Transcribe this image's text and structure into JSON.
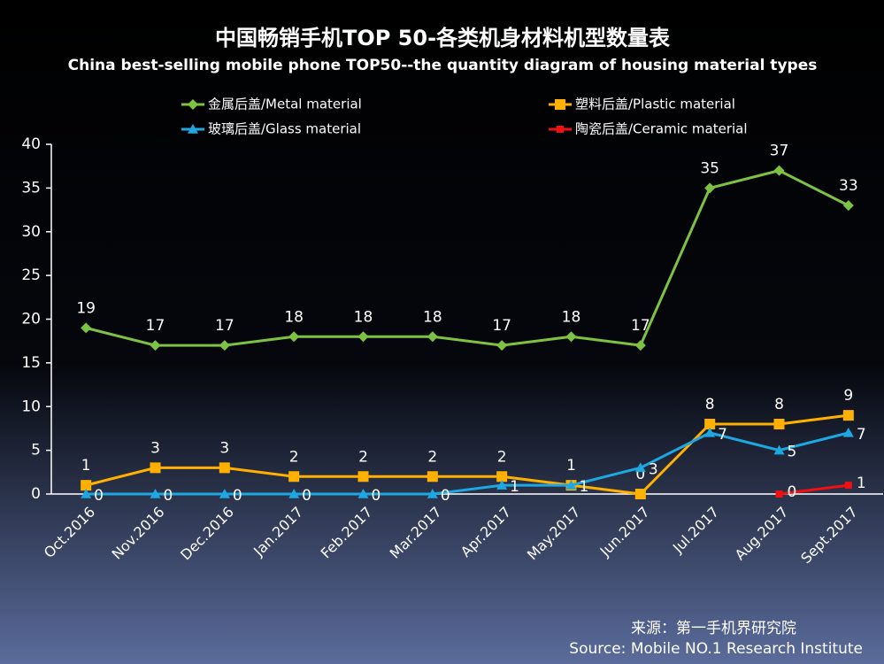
{
  "chart_data": {
    "type": "line",
    "title": "中国畅销手机TOP 50-各类机身材料机型数量表",
    "subtitle": "China best-selling mobile phone TOP50--the quantity diagram of housing material types",
    "categories": [
      "Oct.2016",
      "Nov.2016",
      "Dec.2016",
      "Jan.2017",
      "Feb.2017",
      "Mar.2017",
      "Apr.2017",
      "May.2017",
      "Jun.2017",
      "Jul.2017",
      "Aug.2017",
      "Sept.2017"
    ],
    "series": [
      {
        "name": "金属后盖/Metal material",
        "color": "#7dc242",
        "marker": "diamond",
        "values": [
          19,
          17,
          17,
          18,
          18,
          18,
          17,
          18,
          17,
          35,
          37,
          33
        ]
      },
      {
        "name": "塑料后盖/Plastic material",
        "color": "#ffb000",
        "marker": "square",
        "values": [
          1,
          3,
          3,
          2,
          2,
          2,
          2,
          1,
          0,
          8,
          8,
          9
        ]
      },
      {
        "name": "玻璃后盖/Glass material",
        "color": "#1ea7e1",
        "marker": "triangle",
        "values": [
          0,
          0,
          0,
          0,
          0,
          0,
          1,
          1,
          3,
          7,
          5,
          7
        ]
      },
      {
        "name": "陶瓷后盖/Ceramic material",
        "color": "#ee1111",
        "marker": "square",
        "values": [
          null,
          null,
          null,
          null,
          null,
          null,
          null,
          null,
          null,
          null,
          0,
          1
        ]
      }
    ],
    "ylim": [
      0,
      40
    ],
    "yticks": [
      0,
      5,
      10,
      15,
      20,
      25,
      30,
      35,
      40
    ],
    "source": [
      "来源：第一手机界研究院",
      "Source: Mobile NO.1 Research Institute"
    ]
  }
}
